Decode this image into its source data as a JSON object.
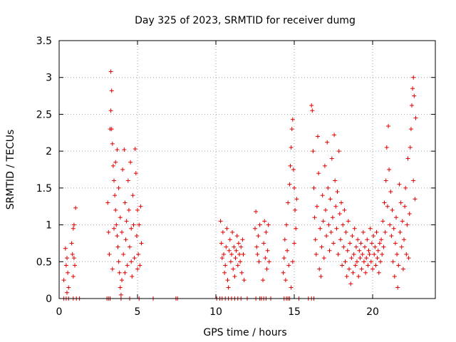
{
  "chart_data": {
    "type": "scatter",
    "title": "Day 325 of 2023, SRMTID for receiver dumg",
    "xlabel": "GPS time / hours",
    "ylabel": "SRMTID / TECUs",
    "xlim": [
      0,
      24
    ],
    "ylim": [
      0,
      3.5
    ],
    "xticks": [
      0,
      5,
      10,
      15,
      20
    ],
    "yticks": [
      0,
      0.5,
      1,
      1.5,
      2,
      2.5,
      3,
      3.5
    ],
    "xtick_labels": [
      "0",
      "5",
      "10",
      "15",
      "20"
    ],
    "ytick_labels": [
      "0",
      "0.5",
      "1",
      "1.5",
      "2",
      "2.5",
      "3",
      "3.5"
    ],
    "grid": true,
    "marker": "+",
    "color": "#e00000",
    "series": [
      {
        "name": "SRMTID",
        "points": [
          [
            0.3,
            0.25
          ],
          [
            0.4,
            0.68
          ],
          [
            0.45,
            0.45
          ],
          [
            0.5,
            0.55
          ],
          [
            0.55,
            0.35
          ],
          [
            0.6,
            0.15
          ],
          [
            0.5,
            0.08
          ],
          [
            0.8,
            0.75
          ],
          [
            0.85,
            0.6
          ],
          [
            0.9,
            0.95
          ],
          [
            0.95,
            1.0
          ],
          [
            1.0,
            0.45
          ],
          [
            1.05,
            1.23
          ],
          [
            0.9,
            0.3
          ],
          [
            0.95,
            0.55
          ],
          [
            3.1,
            1.3
          ],
          [
            3.15,
            0.9
          ],
          [
            3.2,
            0.6
          ],
          [
            3.25,
            2.3
          ],
          [
            3.3,
            3.08
          ],
          [
            3.35,
            2.82
          ],
          [
            3.3,
            2.55
          ],
          [
            3.35,
            2.3
          ],
          [
            3.4,
            2.1
          ],
          [
            3.45,
            1.8
          ],
          [
            3.5,
            1.6
          ],
          [
            3.55,
            1.4
          ],
          [
            3.6,
            1.2
          ],
          [
            3.65,
            1.0
          ],
          [
            3.7,
            0.85
          ],
          [
            3.75,
            0.7
          ],
          [
            3.8,
            0.5
          ],
          [
            3.85,
            0.35
          ],
          [
            3.9,
            0.15
          ],
          [
            3.95,
            0.05
          ],
          [
            3.4,
            0.4
          ],
          [
            3.5,
            0.95
          ],
          [
            3.6,
            1.85
          ],
          [
            3.7,
            2.02
          ],
          [
            3.8,
            1.5
          ],
          [
            3.9,
            1.1
          ],
          [
            4.0,
            0.9
          ],
          [
            4.05,
            1.75
          ],
          [
            4.1,
            0.6
          ],
          [
            4.15,
            2.02
          ],
          [
            4.2,
            1.3
          ],
          [
            4.25,
            0.8
          ],
          [
            4.3,
            1.05
          ],
          [
            4.35,
            0.45
          ],
          [
            4.4,
            1.6
          ],
          [
            4.45,
            1.2
          ],
          [
            4.5,
            0.7
          ],
          [
            4.55,
            1.85
          ],
          [
            4.6,
            0.95
          ],
          [
            4.65,
            0.3
          ],
          [
            4.7,
            1.4
          ],
          [
            4.75,
            1.0
          ],
          [
            4.8,
            0.55
          ],
          [
            4.85,
            2.03
          ],
          [
            4.9,
            1.7
          ],
          [
            4.95,
            0.85
          ],
          [
            5.0,
            1.2
          ],
          [
            5.05,
            0.6
          ],
          [
            5.1,
            1.0
          ],
          [
            5.15,
            0.45
          ],
          [
            5.2,
            1.25
          ],
          [
            5.25,
            0.75
          ],
          [
            4.0,
            0.25
          ],
          [
            4.2,
            0.35
          ],
          [
            4.6,
            0.5
          ],
          [
            5.0,
            0.4
          ],
          [
            10.3,
            1.05
          ],
          [
            10.35,
            0.75
          ],
          [
            10.4,
            0.55
          ],
          [
            10.45,
            0.9
          ],
          [
            10.5,
            0.6
          ],
          [
            10.55,
            0.35
          ],
          [
            10.6,
            0.45
          ],
          [
            10.65,
            0.7
          ],
          [
            10.7,
            0.95
          ],
          [
            10.75,
            0.25
          ],
          [
            10.8,
            0.15
          ],
          [
            10.85,
            0.65
          ],
          [
            10.9,
            0.8
          ],
          [
            10.95,
            0.5
          ],
          [
            11.0,
            0.6
          ],
          [
            11.05,
            0.9
          ],
          [
            11.1,
            0.4
          ],
          [
            11.15,
            0.7
          ],
          [
            11.2,
            0.3
          ],
          [
            11.25,
            0.55
          ],
          [
            11.3,
            0.65
          ],
          [
            11.35,
            0.85
          ],
          [
            11.4,
            0.45
          ],
          [
            11.45,
            0.75
          ],
          [
            11.5,
            0.6
          ],
          [
            11.55,
            0.5
          ],
          [
            11.6,
            0.7
          ],
          [
            11.65,
            0.35
          ],
          [
            11.7,
            0.8
          ],
          [
            11.75,
            0.6
          ],
          [
            11.8,
            0.25
          ],
          [
            12.5,
            0.95
          ],
          [
            12.55,
            1.18
          ],
          [
            12.6,
            0.7
          ],
          [
            12.65,
            0.6
          ],
          [
            12.7,
            0.85
          ],
          [
            12.75,
            0.5
          ],
          [
            12.8,
            1.0
          ],
          [
            13.0,
            0.25
          ],
          [
            13.05,
            0.75
          ],
          [
            13.1,
            1.05
          ],
          [
            13.15,
            0.55
          ],
          [
            13.2,
            0.9
          ],
          [
            13.25,
            0.4
          ],
          [
            13.3,
            0.65
          ],
          [
            13.35,
            1.0
          ],
          [
            13.4,
            0.5
          ],
          [
            14.3,
            0.35
          ],
          [
            14.35,
            0.55
          ],
          [
            14.4,
            0.8
          ],
          [
            14.45,
            0.25
          ],
          [
            14.5,
            1.0
          ],
          [
            14.55,
            0.65
          ],
          [
            14.6,
            1.3
          ],
          [
            14.65,
            0.45
          ],
          [
            14.7,
            1.55
          ],
          [
            14.75,
            1.8
          ],
          [
            14.8,
            2.05
          ],
          [
            14.85,
            2.3
          ],
          [
            14.9,
            2.43
          ],
          [
            14.95,
            1.75
          ],
          [
            15.0,
            1.5
          ],
          [
            15.05,
            1.2
          ],
          [
            15.1,
            0.95
          ],
          [
            15.15,
            1.35
          ],
          [
            14.8,
            0.15
          ],
          [
            14.9,
            0.5
          ],
          [
            15.0,
            0.75
          ],
          [
            16.1,
            2.62
          ],
          [
            16.15,
            2.55
          ],
          [
            16.2,
            2.0
          ],
          [
            16.25,
            1.5
          ],
          [
            16.3,
            1.1
          ],
          [
            16.35,
            0.8
          ],
          [
            16.4,
            0.6
          ],
          [
            16.45,
            1.25
          ],
          [
            16.5,
            2.2
          ],
          [
            16.55,
            1.7
          ],
          [
            16.6,
            0.4
          ],
          [
            16.65,
            0.95
          ],
          [
            16.7,
            0.3
          ],
          [
            16.75,
            0.7
          ],
          [
            16.8,
            1.4
          ],
          [
            16.85,
            1.05
          ],
          [
            16.9,
            0.55
          ],
          [
            16.95,
            1.8
          ],
          [
            17.0,
            1.2
          ],
          [
            17.05,
            0.85
          ],
          [
            17.1,
            2.12
          ],
          [
            17.15,
            1.5
          ],
          [
            17.2,
            1.0
          ],
          [
            17.25,
            0.65
          ],
          [
            17.3,
            1.35
          ],
          [
            17.35,
            0.9
          ],
          [
            17.4,
            1.9
          ],
          [
            17.45,
            1.1
          ],
          [
            17.5,
            0.75
          ],
          [
            17.55,
            2.22
          ],
          [
            17.6,
            1.6
          ],
          [
            17.65,
            1.25
          ],
          [
            17.7,
            0.95
          ],
          [
            17.75,
            1.45
          ],
          [
            17.8,
            0.6
          ],
          [
            17.85,
            2.0
          ],
          [
            17.9,
            1.15
          ],
          [
            17.95,
            0.8
          ],
          [
            18.0,
            1.3
          ],
          [
            18.05,
            0.45
          ],
          [
            18.1,
            1.0
          ],
          [
            18.15,
            0.7
          ],
          [
            18.2,
            1.2
          ],
          [
            18.25,
            0.5
          ],
          [
            18.3,
            0.9
          ],
          [
            18.35,
            0.3
          ],
          [
            18.4,
            0.65
          ],
          [
            18.45,
            1.05
          ],
          [
            18.5,
            0.4
          ],
          [
            18.55,
            0.75
          ],
          [
            18.6,
            0.2
          ],
          [
            18.65,
            0.55
          ],
          [
            18.7,
            0.85
          ],
          [
            18.75,
            0.35
          ],
          [
            18.8,
            0.6
          ],
          [
            18.85,
            0.95
          ],
          [
            18.9,
            0.45
          ],
          [
            18.95,
            0.7
          ],
          [
            19.0,
            0.5
          ],
          [
            19.05,
            0.8
          ],
          [
            19.1,
            0.3
          ],
          [
            19.15,
            0.65
          ],
          [
            19.2,
            0.55
          ],
          [
            19.25,
            0.75
          ],
          [
            19.3,
            0.4
          ],
          [
            19.35,
            0.6
          ],
          [
            19.4,
            0.9
          ],
          [
            19.45,
            0.5
          ],
          [
            19.5,
            0.7
          ],
          [
            19.55,
            0.35
          ],
          [
            19.6,
            0.55
          ],
          [
            19.65,
            0.8
          ],
          [
            19.7,
            0.45
          ],
          [
            19.75,
            0.65
          ],
          [
            19.8,
            0.6
          ],
          [
            19.85,
            0.95
          ],
          [
            19.9,
            0.5
          ],
          [
            19.95,
            0.75
          ],
          [
            20.0,
            0.4
          ],
          [
            20.05,
            0.85
          ],
          [
            20.1,
            0.6
          ],
          [
            20.15,
            0.7
          ],
          [
            20.2,
            0.45
          ],
          [
            20.25,
            0.9
          ],
          [
            20.3,
            0.55
          ],
          [
            20.35,
            0.65
          ],
          [
            20.4,
            0.35
          ],
          [
            20.45,
            0.75
          ],
          [
            20.5,
            0.5
          ],
          [
            20.55,
            0.8
          ],
          [
            20.6,
            0.6
          ],
          [
            20.65,
            1.05
          ],
          [
            20.7,
            0.7
          ],
          [
            20.75,
            1.3
          ],
          [
            20.8,
            0.9
          ],
          [
            20.85,
            1.6
          ],
          [
            20.9,
            2.05
          ],
          [
            20.95,
            1.25
          ],
          [
            21.0,
            2.34
          ],
          [
            21.05,
            1.75
          ],
          [
            21.1,
            1.0
          ],
          [
            21.15,
            1.45
          ],
          [
            21.2,
            0.85
          ],
          [
            21.25,
            1.2
          ],
          [
            21.3,
            0.5
          ],
          [
            21.35,
            0.95
          ],
          [
            21.4,
            0.3
          ],
          [
            21.45,
            0.75
          ],
          [
            21.5,
            1.1
          ],
          [
            21.55,
            0.6
          ],
          [
            21.6,
            0.15
          ],
          [
            21.65,
            0.45
          ],
          [
            21.7,
            1.55
          ],
          [
            21.75,
            0.9
          ],
          [
            21.8,
            1.3
          ],
          [
            21.85,
            0.7
          ],
          [
            21.9,
            1.05
          ],
          [
            21.95,
            0.4
          ],
          [
            22.0,
            0.8
          ],
          [
            22.05,
            1.25
          ],
          [
            22.1,
            1.5
          ],
          [
            22.15,
            0.6
          ],
          [
            22.2,
            1.0
          ],
          [
            22.25,
            1.9
          ],
          [
            22.3,
            0.55
          ],
          [
            22.35,
            1.15
          ],
          [
            22.4,
            2.05
          ],
          [
            22.45,
            2.3
          ],
          [
            22.5,
            2.62
          ],
          [
            22.55,
            2.85
          ],
          [
            22.6,
            3.0
          ],
          [
            22.65,
            2.75
          ],
          [
            22.7,
            1.35
          ],
          [
            22.75,
            2.45
          ],
          [
            22.6,
            1.6
          ]
        ],
        "baseline_hours": [
          0.3,
          0.45,
          0.6,
          0.9,
          1.1,
          1.3,
          3.05,
          3.15,
          3.25,
          3.95,
          4.5,
          5.1,
          6.0,
          7.45,
          7.55,
          10.05,
          10.25,
          10.4,
          10.6,
          10.8,
          11.0,
          11.2,
          11.4,
          11.6,
          12.0,
          12.55,
          12.8,
          12.9,
          13.05,
          13.2,
          13.5,
          14.35,
          14.5,
          14.6,
          14.7,
          15.3,
          15.9,
          16.1,
          16.25
        ]
      }
    ]
  }
}
